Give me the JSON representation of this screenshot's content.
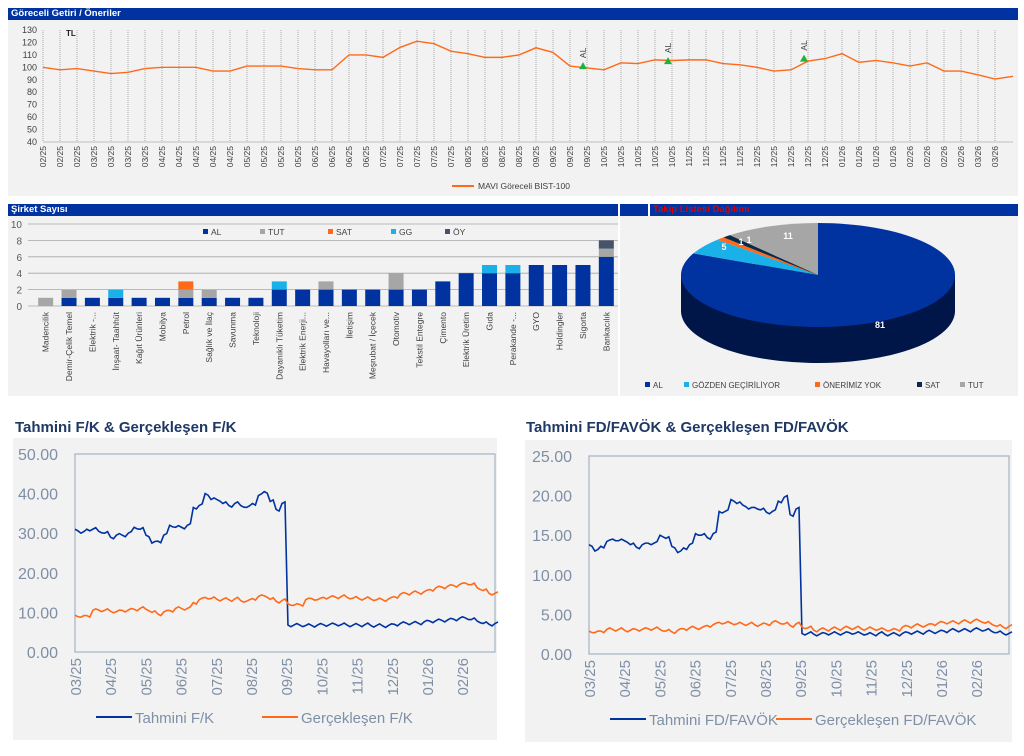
{
  "top": {
    "header": "Göreceli Getiri / Öneriler",
    "currency_label": "TL",
    "legend": "MAVI Göreceli BIST-100",
    "line_color": "#ff6a1a"
  },
  "mid_left": {
    "header": "Şirket Sayısı"
  },
  "mid_right": {
    "header": "Takip Listesi Dağılımı",
    "header_color": "#e00000"
  },
  "bottom_left": {
    "title": "Tahmini F/K & Gerçekleşen F/K"
  },
  "bottom_right": {
    "title": "Tahmini FD/FAVÖK & Gerçekleşen FD/FAVÖK"
  },
  "chart_data": [
    {
      "id": "relative-return",
      "type": "line",
      "ylim": [
        40,
        130
      ],
      "yticks": [
        40,
        50,
        60,
        70,
        80,
        90,
        100,
        110,
        120,
        130
      ],
      "grid": "vertical dotted",
      "legend_position": "bottom",
      "x": [
        "02/25",
        "02/25",
        "02/25",
        "03/25",
        "03/25",
        "03/25",
        "03/25",
        "04/25",
        "04/25",
        "04/25",
        "04/25",
        "04/25",
        "05/25",
        "05/25",
        "05/25",
        "05/25",
        "06/25",
        "06/25",
        "06/25",
        "06/25",
        "07/25",
        "07/25",
        "07/25",
        "07/25",
        "07/25",
        "08/25",
        "08/25",
        "08/25",
        "08/25",
        "09/25",
        "09/25",
        "09/25",
        "09/25",
        "10/25",
        "10/25",
        "10/25",
        "10/25",
        "10/25",
        "11/25",
        "11/25",
        "11/25",
        "11/25",
        "12/25",
        "12/25",
        "12/25",
        "12/25",
        "12/25",
        "01/26",
        "01/26",
        "01/26",
        "01/26",
        "02/26",
        "02/26",
        "02/26",
        "02/26",
        "03/26",
        "03/26"
      ],
      "series": [
        {
          "name": "MAVI Göreceli BIST-100",
          "color": "#ff6a1a",
          "values": [
            100,
            98,
            99,
            97,
            95,
            96,
            99,
            100,
            100,
            100,
            97,
            97,
            101,
            101,
            101,
            99,
            98,
            98,
            110,
            110,
            108,
            116,
            121,
            119,
            113,
            111,
            108,
            108,
            110,
            115.7,
            112,
            101,
            99.5,
            98,
            103.6,
            103,
            106,
            105.5,
            106,
            106,
            103,
            102,
            100,
            97,
            98,
            105,
            107,
            111,
            104,
            105.5,
            103.6,
            101,
            103.6,
            97,
            97,
            94,
            90.6
          ]
        }
      ],
      "annotations": [
        {
          "label": "AL",
          "marker": "up-triangle",
          "color": "#1db33a",
          "point_index": 32,
          "value": 101
        },
        {
          "label": "AL",
          "marker": "up-triangle",
          "color": "#1db33a",
          "point_index": 37,
          "value": 105
        },
        {
          "label": "AL",
          "marker": "up-triangle",
          "color": "#1db33a",
          "point_index": 45,
          "value": 107
        }
      ]
    },
    {
      "id": "company-count",
      "type": "bar",
      "stacked": true,
      "ylim": [
        0,
        10
      ],
      "yticks": [
        0,
        2,
        4,
        6,
        8,
        10
      ],
      "legend_position": "top",
      "categories": [
        "Madencilik",
        "Demir-Çelik Temel",
        "Elektrik -...",
        "İnşaat- Taahhüt",
        "Kağıt Ürünleri",
        "Mobilya",
        "Petrol",
        "Sağlık ve İlaç",
        "Savunma",
        "Teknoloji",
        "Dayanıklı Tüketim",
        "Elektrik Enerji...",
        "Havayolları ve...",
        "İletişim",
        "Meşrubat / İçecek",
        "Otomotiv",
        "Tekstil Entegre",
        "Çimento",
        "Elektrik Üretim",
        "Gıda",
        "Perakande -...",
        "GYO",
        "Holdingler",
        "Sigorta",
        "Bankacılık"
      ],
      "series": [
        {
          "name": "AL",
          "color": "#0033a0",
          "values": [
            0,
            1,
            1,
            1,
            1,
            1,
            1,
            1,
            1,
            1,
            2,
            2,
            2,
            2,
            2,
            2,
            2,
            3,
            4,
            4,
            4,
            5,
            5,
            5,
            6
          ]
        },
        {
          "name": "TUT",
          "color": "#a6a6a6",
          "values": [
            1,
            1,
            0,
            0,
            0,
            0,
            1,
            1,
            0,
            0,
            0,
            0,
            1,
            0,
            0,
            2,
            0,
            0,
            0,
            0,
            0,
            0,
            0,
            0,
            1
          ]
        },
        {
          "name": "SAT",
          "color": "#ff6a1a",
          "values": [
            0,
            0,
            0,
            0,
            0,
            0,
            1,
            0,
            0,
            0,
            0,
            0,
            0,
            0,
            0,
            0,
            0,
            0,
            0,
            0,
            0,
            0,
            0,
            0,
            0
          ]
        },
        {
          "name": "GG",
          "color": "#1ab0e8",
          "values": [
            0,
            0,
            0,
            1,
            0,
            0,
            0,
            0,
            0,
            0,
            1,
            0,
            0,
            0,
            0,
            0,
            0,
            0,
            0,
            1,
            1,
            0,
            0,
            0,
            0
          ]
        },
        {
          "name": "ÖY",
          "color": "#44546a",
          "values": [
            0,
            0,
            0,
            0,
            0,
            0,
            0,
            0,
            0,
            0,
            0,
            0,
            0,
            0,
            0,
            0,
            0,
            0,
            0,
            0,
            0,
            0,
            0,
            0,
            1
          ]
        }
      ]
    },
    {
      "id": "watchlist-distribution",
      "type": "pie",
      "style": "3d",
      "legend_position": "bottom",
      "slices": [
        {
          "name": "AL",
          "value": 81,
          "color": "#0033a0"
        },
        {
          "name": "GÖZDEN GEÇİRİLİYOR",
          "value": 5,
          "color": "#1ab0e8"
        },
        {
          "name": "ÖNERİMİZ YOK",
          "value": 1,
          "color": "#ff6a1a"
        },
        {
          "name": "SAT",
          "value": 1,
          "color": "#0b2a4a"
        },
        {
          "name": "TUT",
          "value": 11,
          "color": "#a6a6a6"
        }
      ]
    },
    {
      "id": "pe",
      "type": "line",
      "title": "Tahmini F/K & Gerçekleşen F/K",
      "ylim": [
        0,
        50
      ],
      "yticks": [
        "0.00",
        "10.00",
        "20.00",
        "30.00",
        "40.00",
        "50.00"
      ],
      "xticks": [
        "03/25",
        "04/25",
        "05/25",
        "06/25",
        "07/25",
        "08/25",
        "09/25",
        "10/25",
        "11/25",
        "12/25",
        "01/26",
        "02/26"
      ],
      "legend_position": "bottom",
      "series": [
        {
          "name": "Tahmini F/K",
          "color": "#0033a0",
          "values": [
            31,
            30,
            31,
            31,
            30.5,
            30,
            29,
            29.5,
            29.5,
            30,
            31.5,
            31,
            29.5,
            27.5,
            28,
            29.5,
            32,
            31.5,
            31.5,
            32,
            36.5,
            37,
            40,
            38.5,
            38.5,
            37.5,
            37,
            37.5,
            37,
            36.5,
            37.5,
            39.5,
            40.5,
            38,
            36,
            37.5,
            6.8,
            6.8,
            6.8,
            6.7,
            6.7,
            6.8,
            6.9,
            6.9,
            7,
            6.9,
            6.8,
            6.8,
            6.8,
            6.9,
            6.7,
            6.7,
            6.6,
            6.7,
            7,
            7.2,
            7.3,
            7.3,
            7.3,
            7.6,
            7.8,
            7.9,
            8,
            8.1,
            8.3,
            8.5,
            8.6,
            8.2,
            7.8,
            7.2,
            7,
            7.2
          ]
        },
        {
          "name": "Gerçekleşen F/K",
          "color": "#ff6a1a",
          "values": [
            9.3,
            8.8,
            9.2,
            10.5,
            10.6,
            10.5,
            10.3,
            10.2,
            10.5,
            10.6,
            10.8,
            11,
            10.8,
            10,
            9.6,
            10.1,
            10.5,
            11,
            11,
            11,
            12.5,
            13.2,
            13.8,
            13.5,
            13.3,
            13.3,
            13.2,
            13.4,
            13,
            12.8,
            13.5,
            14,
            14.2,
            13.3,
            12.8,
            13,
            12.2,
            11.8,
            12,
            13.2,
            13.5,
            13.2,
            13.8,
            13.8,
            13.9,
            14,
            13.8,
            13.6,
            13.5,
            13.5,
            13.4,
            13.2,
            13.2,
            13.4,
            14,
            14.6,
            14.8,
            15,
            15,
            15.2,
            15.8,
            16.2,
            16.4,
            16.6,
            16.8,
            17,
            17.4,
            17,
            16.2,
            15.5,
            14.8,
            14.8
          ]
        }
      ]
    },
    {
      "id": "ev-ebitda",
      "type": "line",
      "title": "Tahmini FD/FAVÖK & Gerçekleşen FD/FAVÖK",
      "ylim": [
        0,
        25
      ],
      "yticks": [
        "0.00",
        "5.00",
        "10.00",
        "15.00",
        "20.00",
        "25.00"
      ],
      "xticks": [
        "03/25",
        "04/25",
        "05/25",
        "06/25",
        "07/25",
        "08/25",
        "09/25",
        "10/25",
        "11/25",
        "12/25",
        "01/26",
        "02/26"
      ],
      "legend_position": "bottom",
      "series": [
        {
          "name": "Tahmini FD/FAVÖK",
          "color": "#0033a0",
          "values": [
            13.8,
            13,
            13.6,
            14.2,
            14.5,
            14.3,
            14.3,
            13.8,
            13.5,
            13.8,
            14,
            14,
            15,
            14.6,
            13.6,
            12.8,
            13.4,
            13.8,
            15.2,
            15,
            14.7,
            15.2,
            18,
            18,
            19.5,
            19,
            18.8,
            18.3,
            18.5,
            18.2,
            17.9,
            18,
            19.3,
            19.8,
            17.6,
            18.3,
            2.6,
            2.6,
            2.5,
            2.5,
            2.6,
            2.6,
            2.6,
            2.6,
            2.7,
            2.6,
            2.6,
            2.5,
            2.5,
            2.6,
            2.5,
            2.5,
            2.5,
            2.6,
            2.7,
            2.7,
            2.7,
            2.8,
            2.8,
            2.8,
            2.9,
            3,
            3,
            3,
            3,
            3.1,
            3.1,
            3,
            2.9,
            2.7,
            2.6,
            2.6
          ]
        },
        {
          "name": "Gerçekleşen FD/FAVÖK",
          "color": "#ff6a1a",
          "values": [
            2.9,
            2.7,
            2.9,
            3.1,
            3.1,
            3.1,
            3,
            3,
            3.1,
            3.1,
            3.2,
            3.2,
            3.1,
            2.9,
            2.8,
            3,
            3.2,
            3.3,
            3.3,
            3.3,
            3.6,
            3.7,
            4,
            3.9,
            3.9,
            3.8,
            3.8,
            3.8,
            3.7,
            3.7,
            3.8,
            4,
            4,
            3.8,
            3.6,
            3.8,
            3.4,
            3.3,
            3,
            3.1,
            3.1,
            3.2,
            3.2,
            3.3,
            3.3,
            3.3,
            3.2,
            3.2,
            3.2,
            3.1,
            3.1,
            3,
            3.1,
            3.4,
            3.5,
            3.6,
            3.6,
            3.6,
            3.8,
            3.9,
            4,
            4,
            4,
            4.1,
            4.1,
            4.2,
            4.2,
            3.9,
            3.8,
            3.5,
            3.4,
            3.5
          ]
        }
      ]
    }
  ]
}
